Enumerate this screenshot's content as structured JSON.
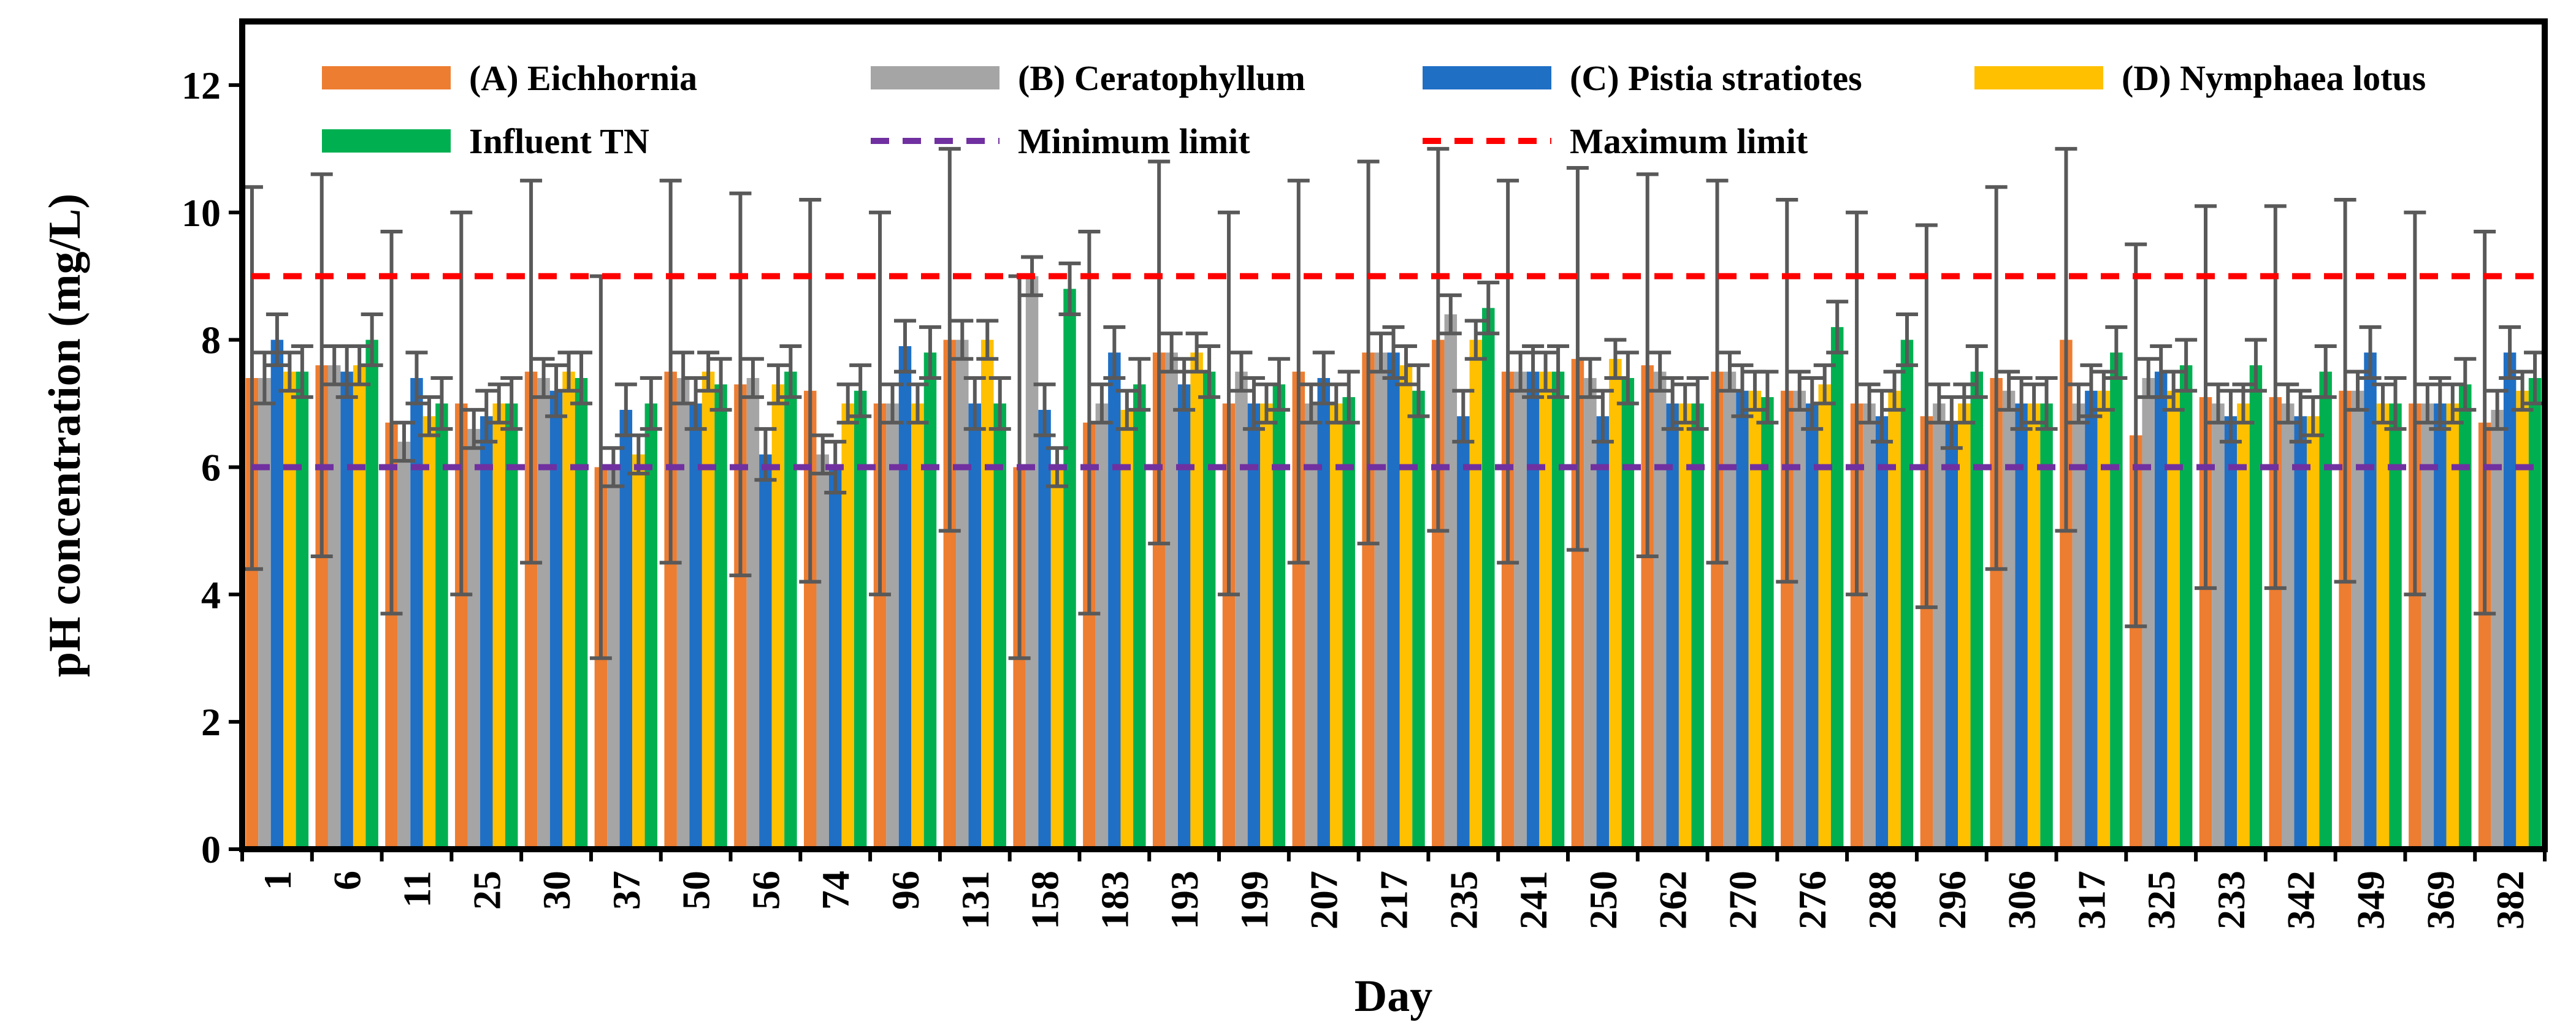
{
  "chart_data": {
    "type": "bar",
    "xlabel": "Day",
    "ylabel": "pH concentration (mg/L)",
    "ylim": [
      0,
      13
    ],
    "yticks": [
      0,
      2,
      4,
      6,
      8,
      10,
      12
    ],
    "grid": false,
    "legend_position": "top",
    "categories": [
      "1",
      "6",
      "11",
      "25",
      "30",
      "37",
      "50",
      "56",
      "74",
      "96",
      "131",
      "158",
      "183",
      "193",
      "199",
      "207",
      "217",
      "235",
      "241",
      "250",
      "262",
      "270",
      "276",
      "288",
      "296",
      "306",
      "317",
      "325",
      "233",
      "342",
      "349",
      "369",
      "382"
    ],
    "series": [
      {
        "name": "(A) Eichhornia",
        "color": "#ED7D31",
        "values": [
          7.4,
          7.6,
          6.7,
          7.0,
          7.5,
          6.0,
          7.5,
          7.3,
          7.2,
          7.0,
          8.0,
          6.0,
          6.7,
          7.8,
          7.0,
          7.5,
          7.8,
          8.0,
          7.5,
          7.7,
          7.6,
          7.5,
          7.2,
          7.0,
          6.8,
          7.4,
          8.0,
          6.5,
          7.1,
          7.1,
          7.2,
          7.0,
          6.7
        ],
        "errors": [
          3.0,
          3.0,
          3.0,
          3.0,
          3.0,
          3.0,
          3.0,
          3.0,
          3.0,
          3.0,
          3.0,
          3.0,
          3.0,
          3.0,
          3.0,
          3.0,
          3.0,
          3.0,
          3.0,
          3.0,
          3.0,
          3.0,
          3.0,
          3.0,
          3.0,
          3.0,
          3.0,
          3.0,
          3.0,
          3.0,
          3.0,
          3.0,
          3.0
        ]
      },
      {
        "name": "(B) Ceratophyllum",
        "color": "#A5A5A5",
        "values": [
          7.4,
          7.6,
          6.4,
          6.6,
          7.4,
          6.0,
          7.4,
          7.4,
          6.2,
          7.0,
          8.0,
          9.0,
          7.0,
          7.8,
          7.5,
          7.0,
          7.8,
          8.4,
          7.5,
          7.4,
          7.5,
          7.5,
          7.2,
          7.0,
          7.0,
          7.2,
          7.0,
          7.4,
          7.0,
          7.0,
          7.2,
          7.0,
          6.9
        ],
        "errors": [
          0.4,
          0.3,
          0.3,
          0.3,
          0.3,
          0.3,
          0.4,
          0.3,
          0.3,
          0.3,
          0.3,
          0.3,
          0.3,
          0.3,
          0.3,
          0.3,
          0.3,
          0.3,
          0.3,
          0.3,
          0.3,
          0.3,
          0.3,
          0.3,
          0.3,
          0.3,
          0.3,
          0.3,
          0.3,
          0.3,
          0.3,
          0.3,
          0.3
        ]
      },
      {
        "name": "(C) Pistia stratiotes",
        "color": "#1F6FC5",
        "values": [
          8.0,
          7.5,
          7.4,
          6.8,
          7.2,
          6.9,
          7.0,
          6.2,
          6.0,
          7.9,
          7.0,
          6.9,
          7.8,
          7.3,
          7.0,
          7.4,
          7.8,
          6.8,
          7.5,
          6.8,
          7.0,
          7.2,
          7.0,
          6.8,
          6.7,
          7.0,
          7.2,
          7.5,
          6.8,
          6.8,
          7.8,
          7.0,
          7.8
        ],
        "errors": [
          0.4,
          0.4,
          0.4,
          0.4,
          0.4,
          0.4,
          0.4,
          0.4,
          0.4,
          0.4,
          0.4,
          0.4,
          0.4,
          0.4,
          0.4,
          0.4,
          0.4,
          0.4,
          0.4,
          0.4,
          0.4,
          0.4,
          0.4,
          0.4,
          0.4,
          0.4,
          0.4,
          0.4,
          0.4,
          0.4,
          0.4,
          0.4,
          0.4
        ]
      },
      {
        "name": "(D) Nymphaea lotus",
        "color": "#FFC000",
        "values": [
          7.5,
          7.6,
          6.8,
          7.0,
          7.5,
          6.2,
          7.5,
          7.3,
          7.0,
          7.0,
          8.0,
          6.0,
          6.9,
          7.8,
          7.0,
          7.0,
          7.6,
          8.0,
          7.5,
          7.7,
          7.0,
          7.2,
          7.3,
          7.2,
          7.0,
          7.0,
          7.2,
          7.2,
          7.0,
          6.8,
          7.0,
          7.0,
          7.2
        ],
        "errors": [
          0.3,
          0.3,
          0.3,
          0.3,
          0.3,
          0.3,
          0.3,
          0.3,
          0.3,
          0.3,
          0.3,
          0.3,
          0.3,
          0.3,
          0.3,
          0.3,
          0.3,
          0.3,
          0.3,
          0.3,
          0.3,
          0.3,
          0.3,
          0.3,
          0.3,
          0.3,
          0.3,
          0.3,
          0.3,
          0.3,
          0.3,
          0.3,
          0.3
        ]
      },
      {
        "name": "Influent TN",
        "color": "#00B050",
        "values": [
          7.5,
          8.0,
          7.0,
          7.0,
          7.4,
          7.0,
          7.3,
          7.5,
          7.2,
          7.8,
          7.0,
          8.8,
          7.3,
          7.5,
          7.3,
          7.1,
          7.2,
          8.5,
          7.5,
          7.4,
          7.0,
          7.1,
          8.2,
          8.0,
          7.5,
          7.0,
          7.8,
          7.6,
          7.6,
          7.5,
          7.0,
          7.3,
          7.4
        ],
        "errors": [
          0.4,
          0.4,
          0.4,
          0.4,
          0.4,
          0.4,
          0.4,
          0.4,
          0.4,
          0.4,
          0.4,
          0.4,
          0.4,
          0.4,
          0.4,
          0.4,
          0.4,
          0.4,
          0.4,
          0.4,
          0.4,
          0.4,
          0.4,
          0.4,
          0.4,
          0.4,
          0.4,
          0.4,
          0.4,
          0.4,
          0.4,
          0.4,
          0.4
        ]
      }
    ],
    "reference_lines": [
      {
        "name": "Minimum limit",
        "value": 6,
        "color": "#7030A0"
      },
      {
        "name": "Maximum limit",
        "value": 9,
        "color": "#FF0000"
      }
    ]
  }
}
